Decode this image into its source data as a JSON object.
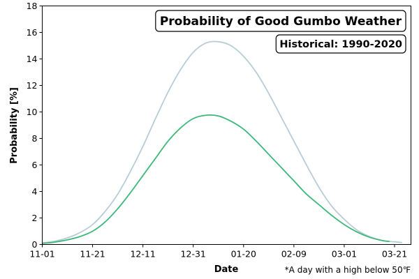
{
  "chart_data": {
    "type": "line",
    "title": "Probability of Good Gumbo Weather",
    "subtitle": "Historical: 1990-2020",
    "xlabel": "Date",
    "ylabel": "Probability [%]",
    "footnote": "*A day with a high below 50℉",
    "xlim": [
      "11-01",
      "03-21"
    ],
    "ylim": [
      0,
      18
    ],
    "x_ticks": [
      "11-01",
      "11-21",
      "12-11",
      "12-31",
      "01-20",
      "02-09",
      "03-01",
      "03-21"
    ],
    "y_ticks": [
      0,
      2,
      4,
      6,
      8,
      10,
      12,
      14,
      16,
      18
    ],
    "grid": false,
    "series": [
      {
        "color": "#b8ccd8",
        "x": [
          "11-01",
          "11-06",
          "11-11",
          "11-16",
          "11-21",
          "11-26",
          "12-01",
          "12-06",
          "12-11",
          "12-16",
          "12-21",
          "12-26",
          "12-31",
          "01-05",
          "01-10",
          "01-15",
          "01-20",
          "01-25",
          "01-30",
          "02-04",
          "02-09",
          "02-14",
          "02-19",
          "02-24",
          "03-01",
          "03-06",
          "03-11",
          "03-16",
          "03-21",
          "03-24"
        ],
        "values": [
          0.12,
          0.25,
          0.5,
          0.9,
          1.5,
          2.5,
          3.8,
          5.5,
          7.4,
          9.5,
          11.5,
          13.2,
          14.5,
          15.2,
          15.3,
          15.0,
          14.2,
          13.0,
          11.4,
          9.6,
          7.8,
          6.0,
          4.3,
          2.9,
          1.9,
          1.1,
          0.6,
          0.3,
          0.2,
          0.15
        ]
      },
      {
        "color": "#3cb87a",
        "x": [
          "11-01",
          "11-06",
          "11-11",
          "11-16",
          "11-21",
          "11-26",
          "12-01",
          "12-06",
          "12-11",
          "12-16",
          "12-21",
          "12-26",
          "12-31",
          "01-05",
          "01-10",
          "01-15",
          "01-20",
          "01-25",
          "01-30",
          "02-04",
          "02-09",
          "02-14",
          "02-19",
          "02-24",
          "03-01",
          "03-06",
          "03-11",
          "03-16",
          "03-19"
        ],
        "values": [
          0.08,
          0.18,
          0.35,
          0.6,
          1.0,
          1.7,
          2.7,
          3.9,
          5.2,
          6.5,
          7.8,
          8.8,
          9.5,
          9.75,
          9.7,
          9.3,
          8.7,
          7.8,
          6.8,
          5.8,
          4.8,
          3.8,
          3.0,
          2.2,
          1.5,
          0.95,
          0.55,
          0.3,
          0.22
        ]
      }
    ]
  }
}
